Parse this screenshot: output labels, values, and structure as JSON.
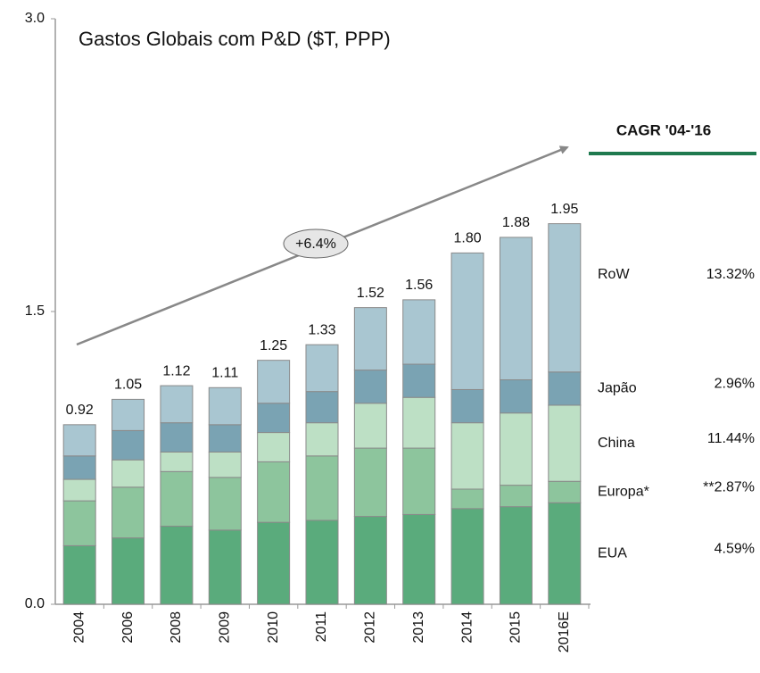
{
  "chart_data": {
    "type": "stacked_bar",
    "title": "Gastos Globais com P&D ($T, PPP)",
    "categories": [
      "2004",
      "2006",
      "2008",
      "2009",
      "2010",
      "2011",
      "2012",
      "2013",
      "2014",
      "2015",
      "2016E"
    ],
    "series": [
      {
        "name": "EUA",
        "color": "#5aab7c",
        "cagr": "4.59%",
        "values": [
          0.3,
          0.34,
          0.4,
          0.38,
          0.42,
          0.43,
          0.45,
          0.46,
          0.49,
          0.5,
          0.52
        ]
      },
      {
        "name": "Europa*",
        "color": "#8dc59d",
        "cagr": "**2.87%",
        "values": [
          0.23,
          0.26,
          0.28,
          0.27,
          0.31,
          0.33,
          0.35,
          0.34,
          0.1,
          0.11,
          0.11
        ]
      },
      {
        "name": "China",
        "color": "#bde0c5",
        "cagr": "11.44%",
        "values": [
          0.11,
          0.14,
          0.1,
          0.13,
          0.15,
          0.17,
          0.23,
          0.26,
          0.34,
          0.37,
          0.39
        ]
      },
      {
        "name": "Japão",
        "color": "#7aa3b3",
        "cagr": "2.96%",
        "values": [
          0.12,
          0.15,
          0.15,
          0.14,
          0.15,
          0.16,
          0.17,
          0.17,
          0.17,
          0.17,
          0.17
        ]
      },
      {
        "name": "RoW",
        "color": "#a9c6d1",
        "cagr": "13.32%",
        "values": [
          0.16,
          0.16,
          0.19,
          0.19,
          0.22,
          0.24,
          0.32,
          0.33,
          0.7,
          0.73,
          0.76
        ]
      }
    ],
    "totals": [
      0.92,
      1.05,
      1.12,
      1.11,
      1.25,
      1.33,
      1.52,
      1.56,
      1.8,
      1.88,
      1.95
    ],
    "total_labels": [
      "0.92",
      "1.05",
      "1.12",
      "1.11",
      "1.25",
      "1.33",
      "1.52",
      "1.56",
      "1.80",
      "1.88",
      "1.95"
    ],
    "ylim": [
      0,
      3
    ],
    "yticks": [
      {
        "value": 0,
        "label": "0.0"
      },
      {
        "value": 1.5,
        "label": "1.5"
      },
      {
        "value": 3,
        "label": "3.0"
      }
    ],
    "arrow_label": "+6.4%",
    "cagr_title": "CAGR '04-'16"
  }
}
